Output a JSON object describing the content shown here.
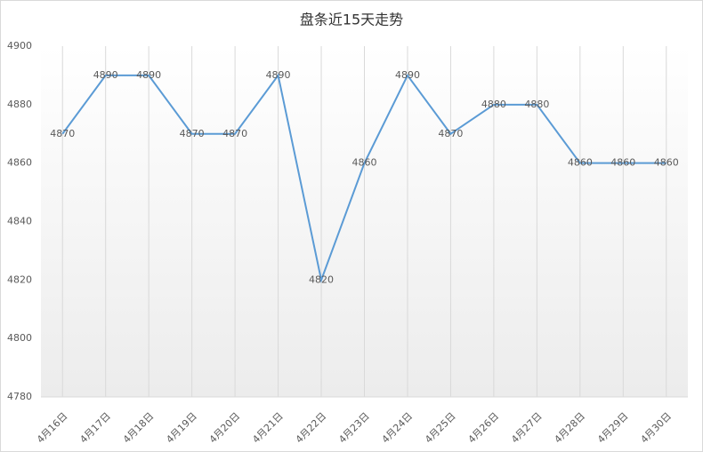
{
  "chart_data": {
    "type": "line",
    "title": "盘条近15天走势",
    "categories": [
      "4月16日",
      "4月17日",
      "4月18日",
      "4月19日",
      "4月20日",
      "4月21日",
      "4月22日",
      "4月23日",
      "4月24日",
      "4月25日",
      "4月26日",
      "4月27日",
      "4月28日",
      "4月29日",
      "4月30日"
    ],
    "values": [
      4870,
      4890,
      4890,
      4870,
      4870,
      4890,
      4820,
      4860,
      4890,
      4870,
      4880,
      4880,
      4860,
      4860,
      4860
    ],
    "color": "#5b9bd5",
    "ylim": [
      4780,
      4900
    ],
    "yticks": [
      4780,
      4800,
      4820,
      4840,
      4860,
      4880,
      4900
    ],
    "grid": "vertical",
    "data_labels": true
  }
}
